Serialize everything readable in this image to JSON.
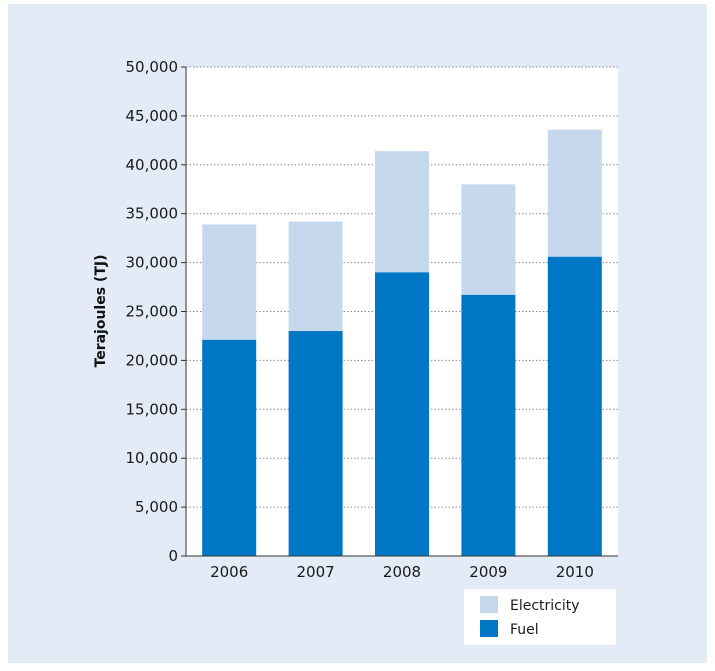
{
  "chart_data": {
    "type": "bar",
    "stacked": true,
    "categories": [
      "2006",
      "2007",
      "2008",
      "2009",
      "2010"
    ],
    "series": [
      {
        "name": "Fuel",
        "values": [
          22100,
          23000,
          29000,
          26700,
          30600
        ],
        "color": "#0077c5"
      },
      {
        "name": "Electricity",
        "values": [
          11800,
          11200,
          12400,
          11300,
          13000
        ],
        "color": "#c6d8ee"
      }
    ],
    "title": "",
    "xlabel": "",
    "ylabel": "Terajoules (TJ)",
    "ylim": [
      0,
      50000
    ],
    "yticks": [
      0,
      5000,
      10000,
      15000,
      20000,
      25000,
      30000,
      35000,
      40000,
      45000,
      50000
    ],
    "ytick_labels": [
      "0",
      "5,000",
      "10,000",
      "15,000",
      "20,000",
      "25,000",
      "30,000",
      "35,000",
      "40,000",
      "45,000",
      "50,000"
    ],
    "grid": "horizontal dotted",
    "legend": {
      "placement": "bottom-right",
      "entries": [
        "Electricity",
        "Fuel"
      ]
    },
    "background_color": "#e3ebf6"
  }
}
